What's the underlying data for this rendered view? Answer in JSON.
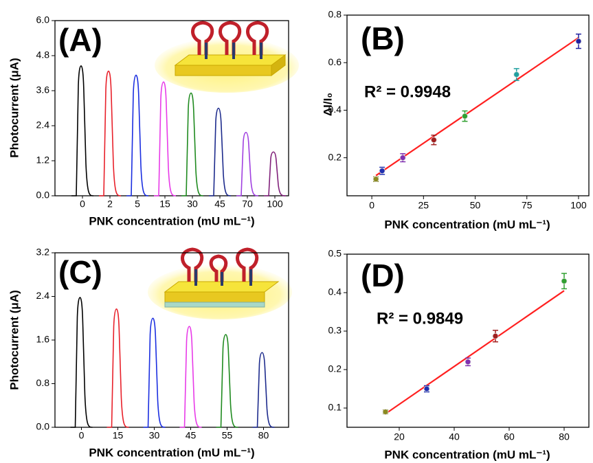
{
  "chart_data": [
    {
      "type": "transient",
      "title": "(A)",
      "ylabel": "Photocurrent (μA)",
      "xlabel": "PNK concentration (mU mL⁻¹)",
      "categories": [
        "0",
        "2",
        "5",
        "15",
        "30",
        "45",
        "70",
        "100"
      ],
      "values": [
        4.45,
        4.27,
        4.13,
        3.9,
        3.52,
        3.0,
        2.17,
        1.5
      ],
      "colors": [
        "#000000",
        "#e8202a",
        "#1a2ee0",
        "#e83ae8",
        "#1f8a1f",
        "#1c2a8c",
        "#a040e0",
        "#80207a"
      ],
      "ylim": [
        0,
        6
      ],
      "yticks": [
        {
          "value": 0,
          "label": "0.0"
        },
        1.2,
        2.4,
        3.6,
        4.8,
        {
          "value": 6,
          "label": "6.0"
        }
      ]
    },
    {
      "type": "scatter",
      "title": "(B)",
      "ylabel": "ΔI/I₀",
      "xlabel": "PNK concentration (mU mL⁻¹)",
      "annotation": "R² = 0.9948",
      "x": [
        2,
        5,
        15,
        30,
        45,
        70,
        100
      ],
      "values": [
        0.11,
        0.145,
        0.2,
        0.275,
        0.375,
        0.55,
        0.69
      ],
      "errors": [
        0.01,
        0.015,
        0.017,
        0.02,
        0.022,
        0.025,
        0.03
      ],
      "colors": [
        "#8a8a20",
        "#2030b0",
        "#8030b0",
        "#a02020",
        "#30a030",
        "#20a0a0",
        "#2020a0"
      ],
      "fit": {
        "x": [
          2,
          100
        ],
        "values": [
          0.125,
          0.705
        ],
        "color": "#ff2020"
      },
      "xlim": [
        -12,
        105
      ],
      "xticks": [
        0,
        25,
        50,
        75,
        100
      ],
      "ylim": [
        0.04,
        0.8
      ],
      "yticks": [
        0.2,
        0.4,
        0.6,
        0.8
      ]
    },
    {
      "type": "transient",
      "title": "(C)",
      "ylabel": "Photocurrent (μA)",
      "xlabel": "PNK concentration (mU mL⁻¹)",
      "categories": [
        "0",
        "15",
        "30",
        "45",
        "55",
        "80"
      ],
      "values": [
        2.38,
        2.17,
        2.0,
        1.85,
        1.7,
        1.37
      ],
      "colors": [
        "#000000",
        "#e8202a",
        "#1a2ee0",
        "#e83ae8",
        "#1f8a1f",
        "#1c2a8c"
      ],
      "ylim": [
        0,
        3.2
      ],
      "yticks": [
        {
          "value": 0,
          "label": "0.0"
        },
        0.8,
        1.6,
        2.4,
        3.2
      ]
    },
    {
      "type": "scatter",
      "title": "(D)",
      "xlabel": "PNK concentration (mU mL⁻¹)",
      "annotation": "R² = 0.9849",
      "x": [
        15,
        30,
        45,
        55,
        80
      ],
      "values": [
        0.09,
        0.15,
        0.22,
        0.287,
        0.43
      ],
      "errors": [
        0.005,
        0.008,
        0.01,
        0.015,
        0.02
      ],
      "colors": [
        "#8a8a20",
        "#2030b0",
        "#8030b0",
        "#a02020",
        "#30a030"
      ],
      "fit": {
        "x": [
          15,
          80
        ],
        "values": [
          0.085,
          0.405
        ],
        "color": "#ff2020"
      },
      "xlim": [
        1,
        89
      ],
      "xticks": [
        20,
        40,
        60,
        80
      ],
      "ylim": [
        0.05,
        0.5
      ],
      "yticks": [
        0.1,
        0.2,
        0.3,
        0.4,
        0.5
      ]
    }
  ]
}
